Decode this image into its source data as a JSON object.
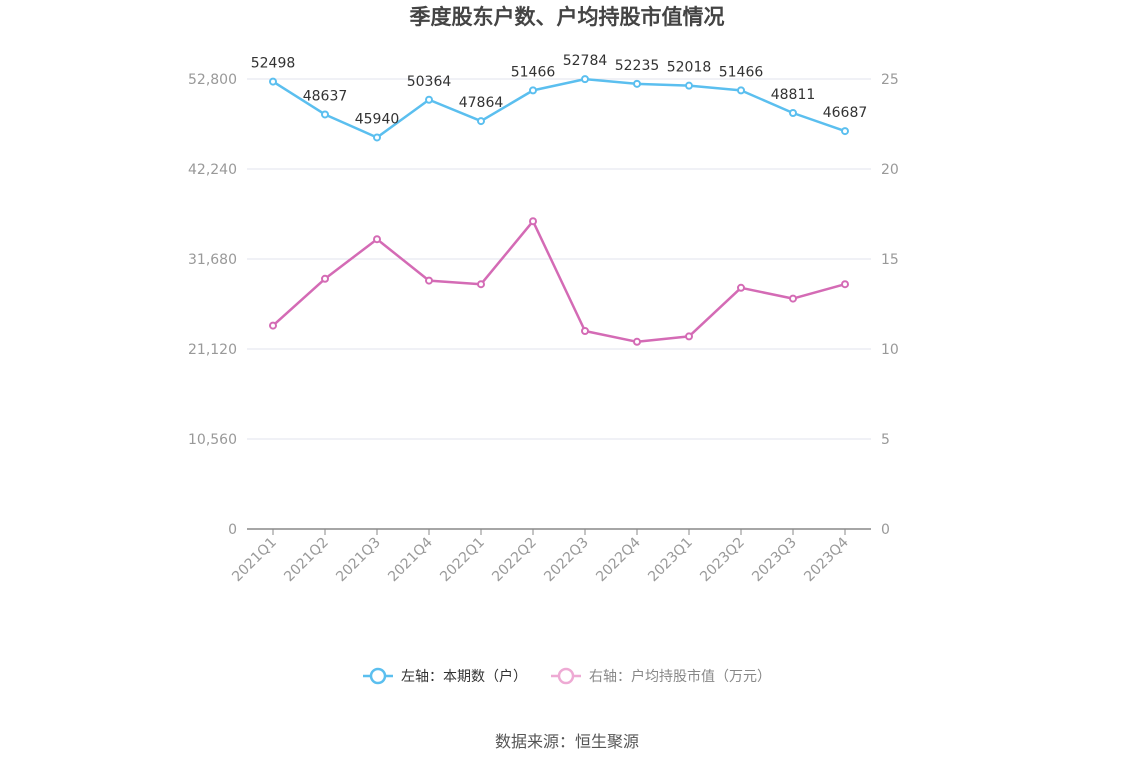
{
  "chart_data": {
    "type": "line",
    "title": "季度股东户数、户均持股市值情况",
    "categories": [
      "2021Q1",
      "2021Q2",
      "2021Q3",
      "2021Q4",
      "2022Q1",
      "2022Q2",
      "2022Q3",
      "2022Q4",
      "2023Q1",
      "2023Q2",
      "2023Q3",
      "2023Q4"
    ],
    "left_axis": {
      "ticks": [
        "0",
        "10,560",
        "21,120",
        "31,680",
        "42,240",
        "52,800"
      ],
      "ylim": [
        0,
        52800
      ]
    },
    "right_axis": {
      "ticks": [
        "0",
        "5",
        "10",
        "15",
        "20",
        "25"
      ],
      "ylim": [
        0,
        25
      ]
    },
    "series": [
      {
        "name": "左轴：本期数（户）",
        "axis": "left",
        "color": "#5bbfef",
        "values": [
          52498,
          48637,
          45940,
          50364,
          47864,
          51466,
          52784,
          52235,
          52018,
          51466,
          48811,
          46687
        ],
        "labels": [
          "52498",
          "48637",
          "45940",
          "50364",
          "47864",
          "51466",
          "52784",
          "52235",
          "52018",
          "51466",
          "48811",
          "46687"
        ]
      },
      {
        "name": "右轴：户均持股市值（万元）",
        "axis": "right",
        "color": "#d46bb5",
        "values": [
          11.3,
          13.9,
          16.1,
          13.8,
          13.6,
          17.1,
          11.0,
          10.4,
          10.7,
          13.4,
          12.8,
          13.6
        ]
      }
    ],
    "grid": true,
    "legend_position": "bottom"
  },
  "source": "数据来源：恒生聚源"
}
